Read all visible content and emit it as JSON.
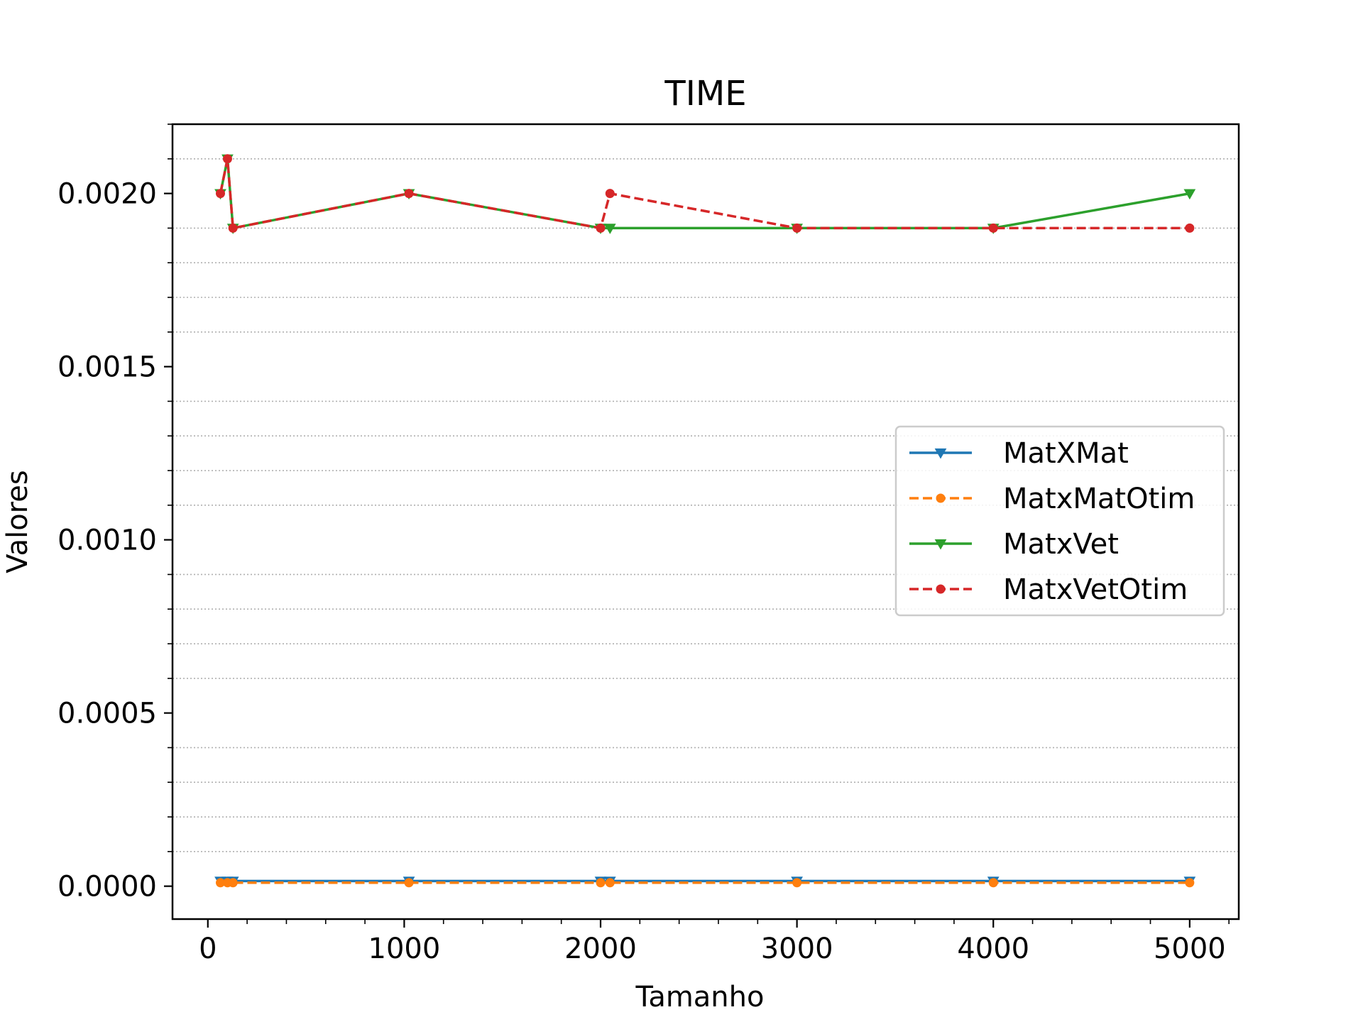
{
  "chart_data": {
    "type": "line",
    "title": "TIME",
    "xlabel": "Tamanho",
    "ylabel": "Valores",
    "xlim": [
      -180,
      5250
    ],
    "ylim": [
      -9.5e-05,
      0.0022
    ],
    "xticks": [
      0,
      1000,
      2000,
      3000,
      4000,
      5000
    ],
    "xtick_labels": [
      "0",
      "1000",
      "2000",
      "3000",
      "4000",
      "5000"
    ],
    "yticks": [
      0.0,
      0.0005,
      0.001,
      0.0015,
      0.002
    ],
    "ytick_labels": [
      "0.0000",
      "0.0005",
      "0.0010",
      "0.0015",
      "0.0020"
    ],
    "grid": "horizontal-minor-dotted",
    "legend_position": "center-right",
    "series": [
      {
        "name": "MatXMat",
        "color": "#1f77b4",
        "linestyle": "solid",
        "marker": "triangle-down",
        "x": [
          64,
          100,
          128,
          1024,
          2000,
          2048,
          3000,
          4000,
          5000
        ],
        "y": [
          1.5e-05,
          1.5e-05,
          1.5e-05,
          1.5e-05,
          1.5e-05,
          1.5e-05,
          1.5e-05,
          1.5e-05,
          1.5e-05
        ]
      },
      {
        "name": "MatxMatOtim",
        "color": "#ff7f0e",
        "linestyle": "dashed",
        "marker": "circle",
        "x": [
          64,
          100,
          128,
          1024,
          2000,
          2048,
          3000,
          4000,
          5000
        ],
        "y": [
          1e-05,
          1e-05,
          1e-05,
          1e-05,
          1e-05,
          1e-05,
          1e-05,
          1e-05,
          1e-05
        ]
      },
      {
        "name": "MatxVet",
        "color": "#2ca02c",
        "linestyle": "solid",
        "marker": "triangle-down",
        "x": [
          64,
          100,
          128,
          1024,
          2000,
          2048,
          3000,
          4000,
          5000
        ],
        "y": [
          0.002,
          0.0021,
          0.0019,
          0.002,
          0.0019,
          0.0019,
          0.0019,
          0.0019,
          0.002
        ]
      },
      {
        "name": "MatxVetOtim",
        "color": "#d62728",
        "linestyle": "dashed",
        "marker": "circle",
        "x": [
          64,
          100,
          128,
          1024,
          2000,
          2048,
          3000,
          4000,
          5000
        ],
        "y": [
          0.002,
          0.0021,
          0.0019,
          0.002,
          0.0019,
          0.002,
          0.0019,
          0.0019,
          0.0019
        ]
      }
    ]
  }
}
